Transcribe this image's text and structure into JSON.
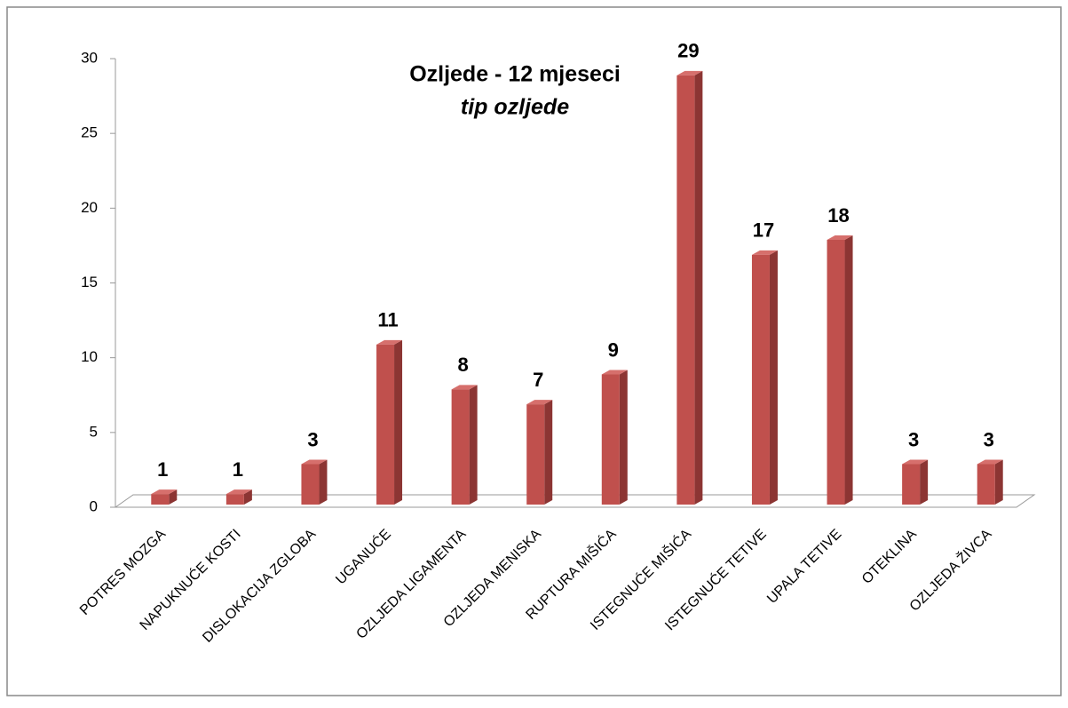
{
  "chart_data": {
    "type": "bar3d",
    "title": "Ozljede - 12 mjeseci",
    "subtitle": "tip ozljede",
    "categories": [
      "POTRES MOZGA",
      "NAPUKNUĆE KOSTI",
      "DISLOKACIJA ZGLOBA",
      "UGANUĆE",
      "OZLJEDA LIGAMENTA",
      "OZLJEDA MENISKA",
      "RUPTURA MIŠIĆA",
      "ISTEGNUĆE MIŠIĆA",
      "ISTEGNUĆE TETIVE",
      "UPALA TETIVE",
      "OTEKLINA",
      "OZLJEDA ŽIVCA"
    ],
    "values": [
      1,
      1,
      3,
      11,
      8,
      7,
      9,
      29,
      17,
      18,
      3,
      3
    ],
    "color": "#c0504d",
    "ylim": [
      0,
      30
    ],
    "yticks": [
      0,
      5,
      10,
      15,
      20,
      25,
      30
    ],
    "grid": false
  }
}
